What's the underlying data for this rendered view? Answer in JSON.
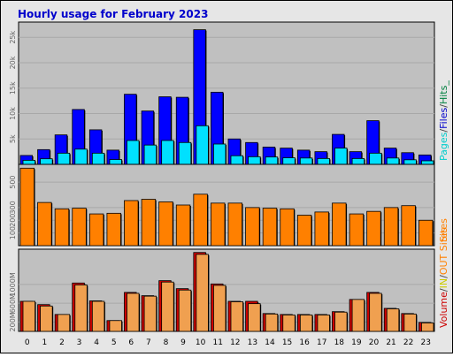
{
  "chart_data": {
    "type": "bar",
    "title": "Hourly usage for February 2023",
    "categories": [
      "0",
      "1",
      "2",
      "3",
      "4",
      "5",
      "6",
      "7",
      "8",
      "9",
      "10",
      "11",
      "12",
      "13",
      "14",
      "15",
      "16",
      "17",
      "18",
      "19",
      "20",
      "21",
      "22",
      "23"
    ],
    "panels": [
      {
        "name": "hits-files-pages",
        "ylim": [
          0,
          28000
        ],
        "yticks": [
          "5k",
          "10k",
          "15k",
          "20k",
          "25k"
        ],
        "ytick_values": [
          5000,
          10000,
          15000,
          20000,
          25000
        ],
        "legend": [
          {
            "text": "Pages",
            "color": "#00cccc"
          },
          {
            "text": "/",
            "color": "#444444"
          },
          {
            "text": "Files",
            "color": "#0000cc"
          },
          {
            "text": "/",
            "color": "#444444"
          },
          {
            "text": "Hits",
            "color": "#008040"
          },
          {
            "text": "_",
            "color": "#008040"
          }
        ],
        "series": [
          {
            "name": "Files",
            "color": "#0000ff",
            "values": [
              1750,
              2900,
              5800,
              10800,
              6800,
              2800,
              13800,
              10500,
              13300,
              13200,
              26500,
              14200,
              5000,
              4300,
              3400,
              3200,
              2800,
              2500,
              5900,
              2500,
              8600,
              3200,
              2300,
              1850
            ]
          },
          {
            "name": "Pages",
            "color": "#00e0ff",
            "values": [
              800,
              1100,
              2200,
              3000,
              2200,
              950,
              4700,
              3800,
              4700,
              4300,
              7600,
              4000,
              1700,
              1500,
              1450,
              1300,
              1250,
              1150,
              3200,
              1150,
              2200,
              1250,
              900,
              700
            ]
          }
        ]
      },
      {
        "name": "sites",
        "ylim": [
          0,
          640
        ],
        "yticks": [
          "100",
          "200",
          "300",
          "500"
        ],
        "ytick_values": [
          100,
          200,
          300,
          500
        ],
        "legend": [
          {
            "text": "Sites",
            "color": "#ff8000"
          }
        ],
        "series": [
          {
            "name": "Sites",
            "color": "#ff8000",
            "values": [
              610,
              340,
              290,
              295,
              250,
              255,
              355,
              365,
              345,
              320,
              405,
              335,
              335,
              300,
              295,
              290,
              240,
              265,
              335,
              250,
              270,
              300,
              315,
              200
            ]
          }
        ]
      },
      {
        "name": "volume",
        "ylim": [
          0,
          1750
        ],
        "yticks": [
          "200M",
          "600M",
          "1000M"
        ],
        "ytick_values": [
          200,
          600,
          1000
        ],
        "legend": [
          {
            "text": "Volume",
            "color": "#cc0000"
          },
          {
            "text": "/",
            "color": "#444444"
          },
          {
            "text": "IN",
            "color": "#cccc00"
          },
          {
            "text": "/",
            "color": "#444444"
          },
          {
            "text": "OUT",
            "color": "#ff8000"
          },
          {
            "text": "Sites",
            "color": "#ff8000"
          }
        ],
        "series": [
          {
            "name": "Volume",
            "color": "#cc0000",
            "values": [
              640,
              570,
              360,
              1030,
              650,
              230,
              830,
              760,
              1080,
              910,
              1680,
              1010,
              640,
              640,
              380,
              360,
              360,
              360,
              420,
              680,
              830,
              490,
              380,
              190
            ]
          },
          {
            "name": "OUT",
            "color": "#f0a050",
            "values": [
              640,
              540,
              360,
              990,
              640,
              230,
              810,
              750,
              1050,
              880,
              1640,
              980,
              630,
              590,
              370,
              350,
              350,
              350,
              410,
              680,
              810,
              480,
              370,
              180
            ]
          }
        ]
      }
    ]
  }
}
